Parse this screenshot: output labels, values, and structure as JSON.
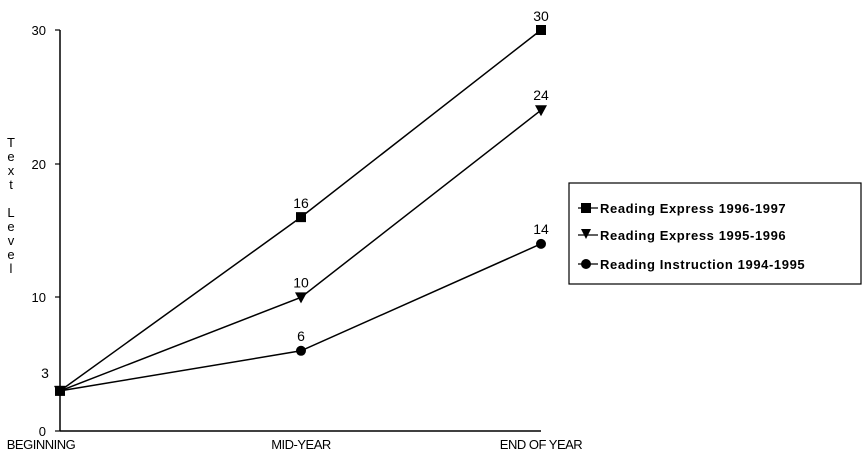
{
  "chart_data": {
    "type": "line",
    "title": "",
    "xlabel": "",
    "ylabel": "Text Level",
    "categories": [
      "BEGINNING",
      "MID-YEAR",
      "END OF YEAR"
    ],
    "ylim": [
      0,
      30
    ],
    "yticks": [
      "0",
      "10",
      "20",
      "30"
    ],
    "grid": false,
    "legend_position": "right",
    "series": [
      {
        "name": "Reading Express 1996-1997",
        "marker": "square",
        "values": [
          3,
          16,
          30
        ],
        "labels": [
          "",
          "16",
          "30"
        ]
      },
      {
        "name": "Reading Express 1995-1996",
        "marker": "triangle-down",
        "values": [
          3,
          10,
          24
        ],
        "labels": [
          "",
          "10",
          "24"
        ]
      },
      {
        "name": "Reading Instruction 1994-1995",
        "marker": "circle",
        "values": [
          3,
          6,
          14
        ],
        "labels": [
          "3",
          "6",
          "14"
        ]
      }
    ],
    "colors": {
      "line": "#000000",
      "background": "#ffffff"
    }
  }
}
